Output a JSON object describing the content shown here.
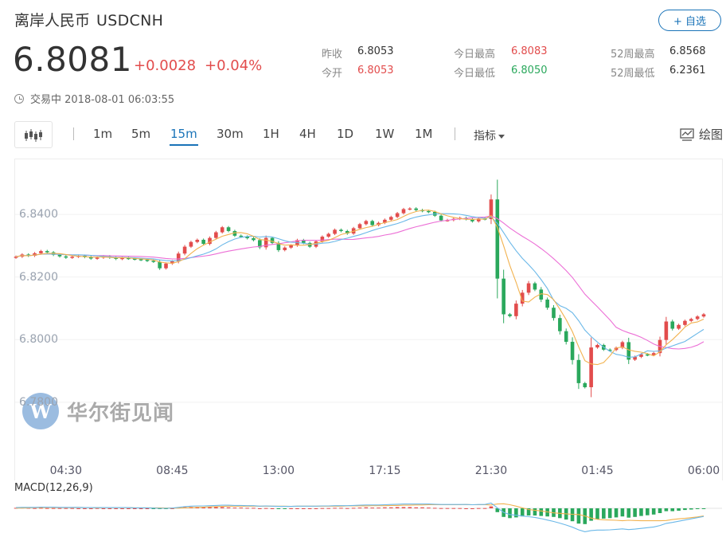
{
  "header": {
    "name": "离岸人民币",
    "code": "USDCNH",
    "add_label": "+ 自选"
  },
  "quote": {
    "price": "6.8081",
    "change": "+0.0028",
    "change_pct": "+0.04%"
  },
  "stats": [
    {
      "label": "昨收",
      "value": "6.8053",
      "color": "neutral"
    },
    {
      "label": "今开",
      "value": "6.8053",
      "color": "red"
    },
    {
      "label": "今日最高",
      "value": "6.8083",
      "color": "red"
    },
    {
      "label": "今日最低",
      "value": "6.8050",
      "color": "green"
    },
    {
      "label": "52周最高",
      "value": "6.8568",
      "color": "neutral"
    },
    {
      "label": "52周最低",
      "value": "6.2361",
      "color": "neutral"
    }
  ],
  "status": {
    "text": "交易中 2018-08-01 06:03:55"
  },
  "toolbar": {
    "timeframes": [
      "1m",
      "5m",
      "15m",
      "30m",
      "1H",
      "4H",
      "1D",
      "1W",
      "1M"
    ],
    "active": "15m",
    "indicator_label": "指标",
    "draw_label": "绘图"
  },
  "watermark": {
    "text": "华尔街见闻",
    "logo_letter": "W"
  },
  "macd_label": "MACD(12,26,9)",
  "colors": {
    "up": "#e24c4c",
    "down": "#2aa85c",
    "ma_short": "#f2b24f",
    "ma_mid": "#6bb8e8",
    "ma_long": "#ec6fd6",
    "accent": "#1a73b8"
  },
  "chart_data": {
    "type": "candlestick",
    "ylim": [
      6.768,
      6.852
    ],
    "y_ticks": [
      6.84,
      6.82,
      6.8,
      6.78
    ],
    "y_tick_labels": [
      "6.8400",
      "6.8200",
      "6.8000",
      "6.7800"
    ],
    "x_tick_labels": [
      "04:30",
      "08:45",
      "13:00",
      "17:15",
      "21:30",
      "01:45",
      "06:00"
    ],
    "x_tick_index": [
      8,
      25,
      42,
      59,
      76,
      93,
      110
    ],
    "closes": [
      6.8265,
      6.8272,
      6.8268,
      6.8276,
      6.8283,
      6.8279,
      6.8271,
      6.8266,
      6.8262,
      6.8265,
      6.8268,
      6.8264,
      6.8259,
      6.8262,
      6.8266,
      6.8262,
      6.8258,
      6.8261,
      6.8259,
      6.8257,
      6.8255,
      6.8252,
      6.8249,
      6.8228,
      6.8243,
      6.825,
      6.8275,
      6.8297,
      6.8312,
      6.8319,
      6.8306,
      6.8325,
      6.8343,
      6.8359,
      6.8347,
      6.8332,
      6.8329,
      6.8324,
      6.8318,
      6.8295,
      6.8325,
      6.8309,
      6.8286,
      6.8294,
      6.8301,
      6.8318,
      6.8309,
      6.8297,
      6.8314,
      6.8329,
      6.8338,
      6.8351,
      6.8347,
      6.8339,
      6.8356,
      6.8369,
      6.8379,
      6.8366,
      6.8373,
      6.8383,
      6.8392,
      6.8404,
      6.8417,
      6.8419,
      6.8414,
      6.8411,
      6.8408,
      6.8396,
      6.8381,
      6.8382,
      6.8386,
      6.8389,
      6.8385,
      6.8378,
      6.8387,
      6.8385,
      6.8448,
      6.8195,
      6.8081,
      6.8075,
      6.8115,
      6.815,
      6.818,
      6.816,
      6.8128,
      6.8102,
      6.8069,
      6.8027,
      6.7993,
      6.7935,
      6.7861,
      6.7848,
      6.7975,
      6.7983,
      6.7968,
      6.7967,
      6.7974,
      6.7992,
      6.7936,
      6.7945,
      6.7953,
      6.7951,
      6.7957,
      6.7999,
      6.8058,
      6.8035,
      6.8047,
      6.806,
      6.8066,
      6.8074,
      6.8081
    ],
    "macd_ylim": [
      -0.01,
      0.006
    ],
    "macd_hist": [
      0.0002,
      0.0003,
      0.0002,
      0.0001,
      0.0002,
      0.0001,
      0.0001,
      0.0001,
      0.0001,
      0.0001,
      0.0,
      0.0,
      0.0,
      0.0001,
      0.0,
      0.0,
      0.0,
      0.0,
      0.0,
      0.0,
      0.0,
      0.0,
      -0.0001,
      -0.0002,
      -0.0001,
      0.0,
      0.0003,
      0.0005,
      0.0006,
      0.0006,
      0.0005,
      0.0005,
      0.0005,
      0.0005,
      0.0004,
      0.0003,
      0.0003,
      0.0002,
      0.0002,
      0.0,
      0.0001,
      0.0,
      -0.0001,
      -0.0001,
      0.0,
      0.0,
      0.0,
      0.0,
      0.0,
      0.0001,
      0.0001,
      0.0002,
      0.0002,
      0.0001,
      0.0002,
      0.0003,
      0.0004,
      0.0003,
      0.0003,
      0.0004,
      0.0004,
      0.0005,
      0.0005,
      0.0005,
      0.0004,
      0.0004,
      0.0003,
      0.0002,
      0.0001,
      0.0001,
      0.0001,
      0.0001,
      0.0,
      0.0,
      0.0001,
      0.0001,
      0.0008,
      -0.0016,
      -0.0036,
      -0.0041,
      -0.0038,
      -0.0034,
      -0.003,
      -0.003,
      -0.0032,
      -0.0034,
      -0.0036,
      -0.0041,
      -0.0047,
      -0.0054,
      -0.0064,
      -0.0066,
      -0.0052,
      -0.0045,
      -0.0043,
      -0.0041,
      -0.0038,
      -0.0034,
      -0.0039,
      -0.0036,
      -0.0032,
      -0.0029,
      -0.0026,
      -0.002,
      -0.0012,
      -0.0012,
      -0.001,
      -0.0007,
      -0.0005,
      -0.0003,
      -0.0002
    ],
    "macd_line": [
      0.0003,
      0.0004,
      0.0004,
      0.0004,
      0.0005,
      0.0005,
      0.0005,
      0.0004,
      0.0004,
      0.0004,
      0.0004,
      0.0003,
      0.0003,
      0.0003,
      0.0003,
      0.0003,
      0.0003,
      0.0003,
      0.0003,
      0.0002,
      0.0002,
      0.0002,
      0.0001,
      0.0,
      0.0,
      0.0001,
      0.0004,
      0.0007,
      0.0009,
      0.001,
      0.001,
      0.0011,
      0.0012,
      0.0013,
      0.0013,
      0.0012,
      0.0012,
      0.0011,
      0.0011,
      0.0009,
      0.001,
      0.0009,
      0.0008,
      0.0008,
      0.0008,
      0.0009,
      0.0009,
      0.0009,
      0.0009,
      0.001,
      0.001,
      0.0011,
      0.0011,
      0.0011,
      0.0012,
      0.0013,
      0.0014,
      0.0014,
      0.0014,
      0.0015,
      0.0016,
      0.0017,
      0.0018,
      0.0018,
      0.0018,
      0.0018,
      0.0018,
      0.0017,
      0.0016,
      0.0016,
      0.0016,
      0.0016,
      0.0016,
      0.0015,
      0.0016,
      0.0016,
      0.0022,
      0.0002,
      -0.0017,
      -0.0026,
      -0.0029,
      -0.0032,
      -0.0035,
      -0.0038,
      -0.0043,
      -0.0049,
      -0.0055,
      -0.0062,
      -0.007,
      -0.0079,
      -0.009,
      -0.0098,
      -0.0093,
      -0.0091,
      -0.0091,
      -0.009,
      -0.0088,
      -0.0086,
      -0.0089,
      -0.0087,
      -0.0084,
      -0.0081,
      -0.0078,
      -0.0072,
      -0.0063,
      -0.0059,
      -0.0054,
      -0.0049,
      -0.0044,
      -0.0039,
      -0.0034
    ],
    "signal_line": [
      0.0001,
      0.0001,
      0.0002,
      0.0003,
      0.0003,
      0.0004,
      0.0004,
      0.0003,
      0.0003,
      0.0003,
      0.0004,
      0.0003,
      0.0003,
      0.0002,
      0.0003,
      0.0003,
      0.0003,
      0.0003,
      0.0003,
      0.0002,
      0.0002,
      0.0002,
      0.0002,
      0.0002,
      0.0001,
      0.0001,
      0.0001,
      0.0002,
      0.0003,
      0.0004,
      0.0005,
      0.0006,
      0.0007,
      0.0008,
      0.0009,
      0.0009,
      0.0009,
      0.0009,
      0.0009,
      0.0009,
      0.0009,
      0.0009,
      0.0009,
      0.0009,
      0.0008,
      0.0009,
      0.0009,
      0.0009,
      0.0009,
      0.0009,
      0.0009,
      0.0009,
      0.0009,
      0.001,
      0.001,
      0.001,
      0.001,
      0.0011,
      0.0011,
      0.0011,
      0.0012,
      0.0012,
      0.0013,
      0.0013,
      0.0014,
      0.0014,
      0.0015,
      0.0015,
      0.0015,
      0.0015,
      0.0015,
      0.0015,
      0.0016,
      0.0015,
      0.0015,
      0.0015,
      0.0014,
      0.0018,
      0.0019,
      0.0015,
      0.0009,
      0.0002,
      -0.0005,
      -0.0008,
      -0.0011,
      -0.0015,
      -0.0019,
      -0.0021,
      -0.0023,
      -0.0025,
      -0.0026,
      -0.0032,
      -0.0041,
      -0.0046,
      -0.0048,
      -0.0049,
      -0.005,
      -0.0052,
      -0.005,
      -0.0051,
      -0.0052,
      -0.0052,
      -0.0052,
      -0.0052,
      -0.0051,
      -0.0047,
      -0.0044,
      -0.0042,
      -0.0039,
      -0.0036,
      -0.0032
    ]
  }
}
